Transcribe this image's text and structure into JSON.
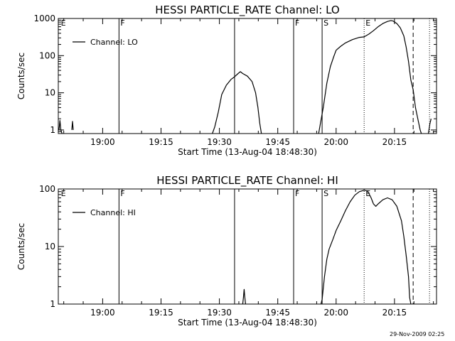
{
  "footer": {
    "timestamp": "29-Nov-2009 02:25"
  },
  "chart_data": [
    {
      "type": "line",
      "title": "HESSI PARTICLE_RATE Channel: LO",
      "xlabel": "Start Time (13-Aug-04 18:48:30)",
      "ylabel": "Counts/sec",
      "yscale": "log",
      "xlim": [
        18.81,
        20.43
      ],
      "ylim": [
        0.8,
        1000
      ],
      "x_ticks": [
        {
          "x": 19.0,
          "label": "19:00"
        },
        {
          "x": 19.25,
          "label": "19:15"
        },
        {
          "x": 19.5,
          "label": "19:30"
        },
        {
          "x": 19.75,
          "label": "19:45"
        },
        {
          "x": 20.0,
          "label": "20:00"
        },
        {
          "x": 20.25,
          "label": "20:15"
        }
      ],
      "y_ticks": [
        {
          "y": 1,
          "label": "1"
        },
        {
          "y": 10,
          "label": "10"
        },
        {
          "y": 100,
          "label": "100"
        },
        {
          "y": 1000,
          "label": "1000"
        }
      ],
      "legend": {
        "label": "Channel: LO",
        "position": "top-left"
      },
      "markers": [
        {
          "x": 18.815,
          "label": "E",
          "style": "none"
        },
        {
          "x": 19.07,
          "label": "F",
          "style": "solid"
        },
        {
          "x": 19.565,
          "label": "",
          "style": "solid"
        },
        {
          "x": 19.818,
          "label": "F",
          "style": "solid"
        },
        {
          "x": 19.94,
          "label": "S",
          "style": "solid"
        },
        {
          "x": 20.12,
          "label": "E",
          "style": "dotted"
        },
        {
          "x": 20.33,
          "label": "",
          "style": "dashed"
        },
        {
          "x": 20.4,
          "label": "",
          "style": "dotted"
        }
      ],
      "series": [
        {
          "name": "Channel: LO",
          "segments": [
            [
              [
                18.813,
                1
              ],
              [
                18.817,
                1.8
              ],
              [
                18.821,
                1
              ],
              [
                18.826,
                0.8
              ]
            ],
            [
              [
                18.868,
                1
              ],
              [
                18.871,
                1.7
              ],
              [
                18.874,
                1
              ]
            ],
            [
              [
                19.47,
                0.8
              ],
              [
                19.48,
                1.2
              ],
              [
                19.495,
                3
              ],
              [
                19.51,
                9
              ],
              [
                19.53,
                16
              ],
              [
                19.55,
                23
              ],
              [
                19.565,
                27
              ],
              [
                19.58,
                33
              ],
              [
                19.59,
                37
              ],
              [
                19.6,
                33
              ],
              [
                19.62,
                28
              ],
              [
                19.64,
                20
              ],
              [
                19.655,
                10
              ],
              [
                19.665,
                4
              ],
              [
                19.673,
                1.5
              ],
              [
                19.68,
                0.8
              ]
            ],
            [
              [
                19.925,
                0.8
              ],
              [
                19.93,
                1.2
              ],
              [
                19.945,
                4
              ],
              [
                19.96,
                18
              ],
              [
                19.975,
                50
              ],
              [
                19.99,
                95
              ],
              [
                20.0,
                140
              ],
              [
                20.02,
                180
              ],
              [
                20.04,
                220
              ],
              [
                20.07,
                270
              ],
              [
                20.1,
                310
              ],
              [
                20.12,
                320
              ],
              [
                20.14,
                380
              ],
              [
                20.16,
                470
              ],
              [
                20.18,
                600
              ],
              [
                20.2,
                730
              ],
              [
                20.22,
                830
              ],
              [
                20.235,
                880
              ],
              [
                20.245,
                850
              ],
              [
                20.26,
                730
              ],
              [
                20.275,
                560
              ],
              [
                20.29,
                340
              ],
              [
                20.3,
                170
              ],
              [
                20.31,
                70
              ],
              [
                20.32,
                22
              ],
              [
                20.33,
                12
              ],
              [
                20.34,
                4
              ],
              [
                20.35,
                2
              ],
              [
                20.36,
                1
              ],
              [
                20.365,
                0.8
              ]
            ],
            [
              [
                20.395,
                0.8
              ],
              [
                20.402,
                1.5
              ],
              [
                20.407,
                2
              ]
            ]
          ]
        }
      ]
    },
    {
      "type": "line",
      "title": "HESSI PARTICLE_RATE Channel: HI",
      "xlabel": "Start Time (13-Aug-04 18:48:30)",
      "ylabel": "Counts/sec",
      "yscale": "log",
      "xlim": [
        18.81,
        20.43
      ],
      "ylim": [
        1,
        100
      ],
      "x_ticks": [
        {
          "x": 19.0,
          "label": "19:00"
        },
        {
          "x": 19.25,
          "label": "19:15"
        },
        {
          "x": 19.5,
          "label": "19:30"
        },
        {
          "x": 19.75,
          "label": "19:45"
        },
        {
          "x": 20.0,
          "label": "20:00"
        },
        {
          "x": 20.25,
          "label": "20:15"
        }
      ],
      "y_ticks": [
        {
          "y": 1,
          "label": "1"
        },
        {
          "y": 10,
          "label": "10"
        },
        {
          "y": 100,
          "label": "100"
        }
      ],
      "legend": {
        "label": "Channel: HI",
        "position": "top-left"
      },
      "markers": [
        {
          "x": 18.815,
          "label": "E",
          "style": "none"
        },
        {
          "x": 19.07,
          "label": "F",
          "style": "solid"
        },
        {
          "x": 19.565,
          "label": "",
          "style": "solid"
        },
        {
          "x": 19.818,
          "label": "F",
          "style": "solid"
        },
        {
          "x": 19.94,
          "label": "S",
          "style": "solid"
        },
        {
          "x": 20.12,
          "label": "E",
          "style": "dotted"
        },
        {
          "x": 20.33,
          "label": "",
          "style": "dashed"
        },
        {
          "x": 20.4,
          "label": "",
          "style": "dotted"
        }
      ],
      "series": [
        {
          "name": "Channel: HI",
          "segments": [
            [
              [
                19.6,
                0.95
              ],
              [
                19.603,
                1.3
              ],
              [
                19.606,
                1.8
              ],
              [
                19.609,
                1.3
              ],
              [
                19.612,
                0.95
              ]
            ],
            [
              [
                19.935,
                0.95
              ],
              [
                19.94,
                1.2
              ],
              [
                19.95,
                3
              ],
              [
                19.96,
                6
              ],
              [
                19.97,
                9
              ],
              [
                19.985,
                13
              ],
              [
                20.0,
                19
              ],
              [
                20.02,
                28
              ],
              [
                20.04,
                42
              ],
              [
                20.06,
                60
              ],
              [
                20.08,
                78
              ],
              [
                20.1,
                90
              ],
              [
                20.12,
                95
              ],
              [
                20.135,
                92
              ],
              [
                20.15,
                70
              ],
              [
                20.16,
                55
              ],
              [
                20.17,
                50
              ],
              [
                20.18,
                55
              ],
              [
                20.2,
                65
              ],
              [
                20.22,
                70
              ],
              [
                20.24,
                65
              ],
              [
                20.26,
                50
              ],
              [
                20.28,
                28
              ],
              [
                20.29,
                15
              ],
              [
                20.3,
                7
              ],
              [
                20.31,
                3
              ],
              [
                20.315,
                1.3
              ],
              [
                20.32,
                0.95
              ]
            ]
          ]
        }
      ]
    }
  ]
}
